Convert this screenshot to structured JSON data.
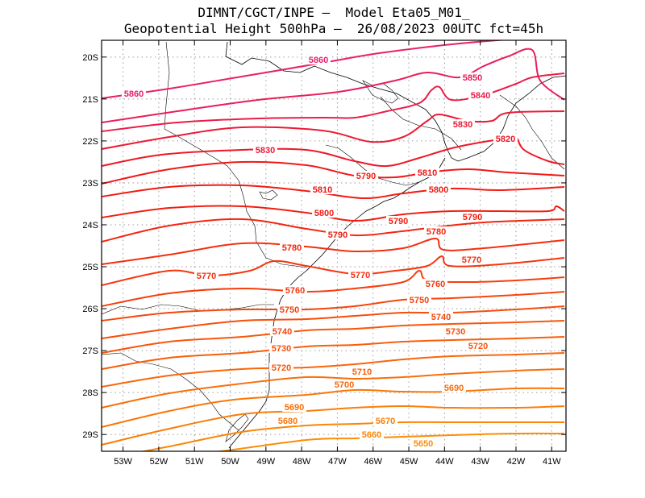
{
  "header": {
    "line1": "DIMNT/CGCT/INPE –  Model Eta05_M01_",
    "line2": "Geopotential Height 500hPa –  26/08/2023 00UTC fct=45h"
  },
  "map": {
    "lon_range": [
      -53.6,
      -40.6
    ],
    "lat_range": [
      -19.6,
      -29.4
    ],
    "lon_ticks": [
      "53W",
      "52W",
      "51W",
      "50W",
      "49W",
      "48W",
      "47W",
      "46W",
      "45W",
      "44W",
      "43W",
      "42W",
      "41W"
    ],
    "lat_ticks": [
      "20S",
      "21S",
      "22S",
      "23S",
      "24S",
      "25S",
      "26S",
      "27S",
      "28S",
      "29S"
    ],
    "contour_interval": 10,
    "contours": [
      {
        "value": 5860,
        "label": "5860",
        "color": "#e8206a"
      },
      {
        "value": 5850,
        "label": "5850",
        "color": "#e81e5a"
      },
      {
        "value": 5840,
        "label": "5840",
        "color": "#ea1c48"
      },
      {
        "value": 5830,
        "label": "5830",
        "color": "#ec1a36"
      },
      {
        "value": 5820,
        "label": "5820",
        "color": "#ee1826"
      },
      {
        "value": 5810,
        "label": "5810",
        "color": "#f01818"
      },
      {
        "value": 5800,
        "label": "5800",
        "color": "#f21a12"
      },
      {
        "value": 5790,
        "label": "5790",
        "color": "#f21e10"
      },
      {
        "value": 5780,
        "label": "5780",
        "color": "#f3260f"
      },
      {
        "value": 5770,
        "label": "5770",
        "color": "#f42e0e"
      },
      {
        "value": 5760,
        "label": "5760",
        "color": "#f5360d"
      },
      {
        "value": 5750,
        "label": "5750",
        "color": "#f63e0c"
      },
      {
        "value": 5740,
        "label": "5740",
        "color": "#f6460b"
      },
      {
        "value": 5730,
        "label": "5730",
        "color": "#f74e0b"
      },
      {
        "value": 5720,
        "label": "5720",
        "color": "#f8560a"
      },
      {
        "value": 5710,
        "label": "5710",
        "color": "#f85e0a"
      },
      {
        "value": 5700,
        "label": "5700",
        "color": "#f96609"
      },
      {
        "value": 5690,
        "label": "5690",
        "color": "#f96e09"
      },
      {
        "value": 5680,
        "label": "5680",
        "color": "#fa7608"
      },
      {
        "value": 5670,
        "label": "5670",
        "color": "#fa7e08"
      },
      {
        "value": 5660,
        "label": "5660",
        "color": "#fb8607"
      },
      {
        "value": 5650,
        "label": "5650",
        "color": "#fb8e07"
      }
    ],
    "coast_color": "#000000",
    "grid_color": "#9a9a9a"
  }
}
